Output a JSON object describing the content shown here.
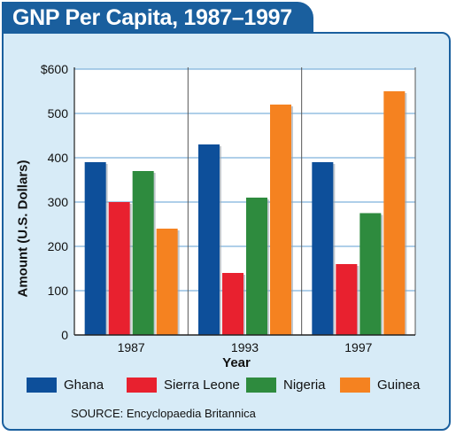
{
  "chart_data": {
    "type": "bar",
    "title": "GNP Per Capita, 1987–1997",
    "xlabel": "Year",
    "ylabel": "Amount (U.S. Dollars)",
    "categories": [
      "1987",
      "1993",
      "1997"
    ],
    "ylim": [
      0,
      600
    ],
    "yticks": [
      "0",
      "100",
      "200",
      "300",
      "400",
      "500",
      "$600"
    ],
    "yticks_values": [
      0,
      100,
      200,
      300,
      400,
      500,
      600
    ],
    "grid": true,
    "legend_position": "bottom",
    "series": [
      {
        "name": "Ghana",
        "color": "#0d4f9a",
        "values": [
          390,
          430,
          390
        ]
      },
      {
        "name": "Sierra Leone",
        "color": "#e8212f",
        "values": [
          300,
          140,
          160
        ]
      },
      {
        "name": "Nigeria",
        "color": "#2e8b3e",
        "values": [
          370,
          310,
          275
        ]
      },
      {
        "name": "Guinea",
        "color": "#f58220",
        "values": [
          240,
          520,
          550
        ]
      }
    ]
  },
  "source": "SOURCE: Encyclopaedia Britannica",
  "colors": {
    "frame": "#1a5f9e",
    "panel": "#d7ebf7",
    "gridline": "#7fb2dc",
    "plot_bg": "#ffffff"
  }
}
